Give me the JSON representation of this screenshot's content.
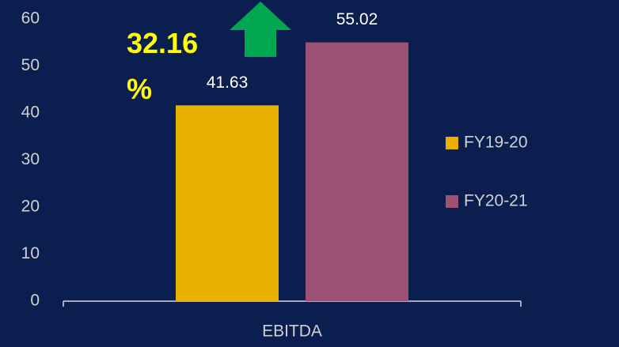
{
  "chart_data": {
    "type": "bar",
    "categories": [
      "EBITDA"
    ],
    "series": [
      {
        "name": "FY19-20",
        "color": "#e9b000",
        "values": [
          41.63
        ]
      },
      {
        "name": "FY20-21",
        "color": "#9b5275",
        "values": [
          55.02
        ]
      }
    ],
    "ylim": [
      0,
      60
    ],
    "yticks": [
      0,
      10,
      20,
      30,
      40,
      50,
      60
    ],
    "grid": false,
    "legend": "right",
    "annotation": "32.16 %"
  }
}
